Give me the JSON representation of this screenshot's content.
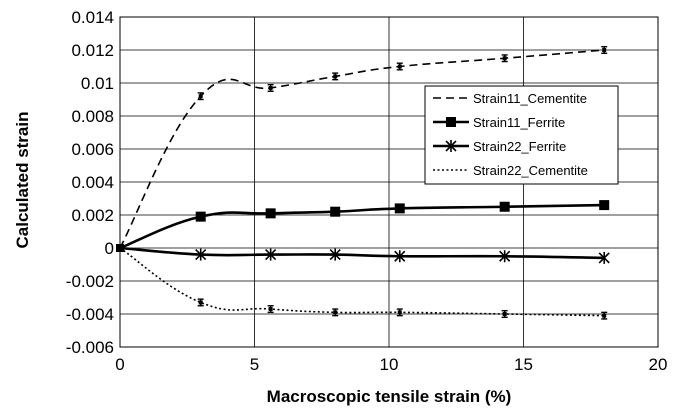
{
  "chart_data": {
    "type": "line",
    "xlabel": "Macroscopic tensile strain (%)",
    "ylabel": "Calculated strain",
    "xlim": [
      0,
      20
    ],
    "ylim": [
      -0.006,
      0.014
    ],
    "x_ticks": [
      0,
      5,
      10,
      15,
      20
    ],
    "x_tick_labels": [
      "0",
      "5",
      "10",
      "15",
      "20"
    ],
    "y_ticks": [
      0.014,
      0.012,
      0.01,
      0.008,
      0.006,
      0.004,
      0.002,
      0,
      -0.002,
      -0.004,
      -0.006
    ],
    "y_tick_labels": [
      "0.014",
      "0.012",
      "0.01",
      "0.008",
      "0.006",
      "0.004",
      "0.002",
      "0",
      "-0.002",
      "-0.004",
      "-0.006"
    ],
    "grid": true,
    "legend_position": "upper-right",
    "series": [
      {
        "name": "Strain11_Cementite",
        "line_style": "dashed",
        "marker": "errorbar",
        "color": "#000000",
        "x": [
          0,
          3.0,
          5.6,
          8.0,
          10.4,
          14.3,
          18.0
        ],
        "y": [
          0,
          0.0092,
          0.0097,
          0.0104,
          0.011,
          0.0115,
          0.012
        ],
        "err": [
          0.00015,
          0.0002,
          0.0002,
          0.0002,
          0.0002,
          0.0002,
          0.0002
        ]
      },
      {
        "name": "Strain11_Ferrite",
        "line_style": "solid",
        "marker": "square",
        "color": "#000000",
        "x": [
          0,
          3.0,
          5.6,
          8.0,
          10.4,
          14.3,
          18.0
        ],
        "y": [
          0,
          0.0019,
          0.0021,
          0.0022,
          0.0024,
          0.0025,
          0.0026
        ],
        "err": []
      },
      {
        "name": "Strain22_Ferrite",
        "line_style": "solid",
        "marker": "asterisk",
        "color": "#000000",
        "x": [
          0,
          3.0,
          5.6,
          8.0,
          10.4,
          14.3,
          18.0
        ],
        "y": [
          0,
          -0.0004,
          -0.0004,
          -0.0004,
          -0.0005,
          -0.0005,
          -0.0006
        ],
        "err": []
      },
      {
        "name": "Strain22_Cementite",
        "line_style": "dotted",
        "marker": "errorbar",
        "color": "#000000",
        "x": [
          0,
          3.0,
          5.6,
          8.0,
          10.4,
          14.3,
          18.0
        ],
        "y": [
          0,
          -0.0033,
          -0.0037,
          -0.0039,
          -0.0039,
          -0.004,
          -0.0041
        ],
        "err": [
          0.0002,
          0.0002,
          0.0002,
          0.0002,
          0.0002,
          0.0002,
          0.0002
        ]
      }
    ]
  }
}
